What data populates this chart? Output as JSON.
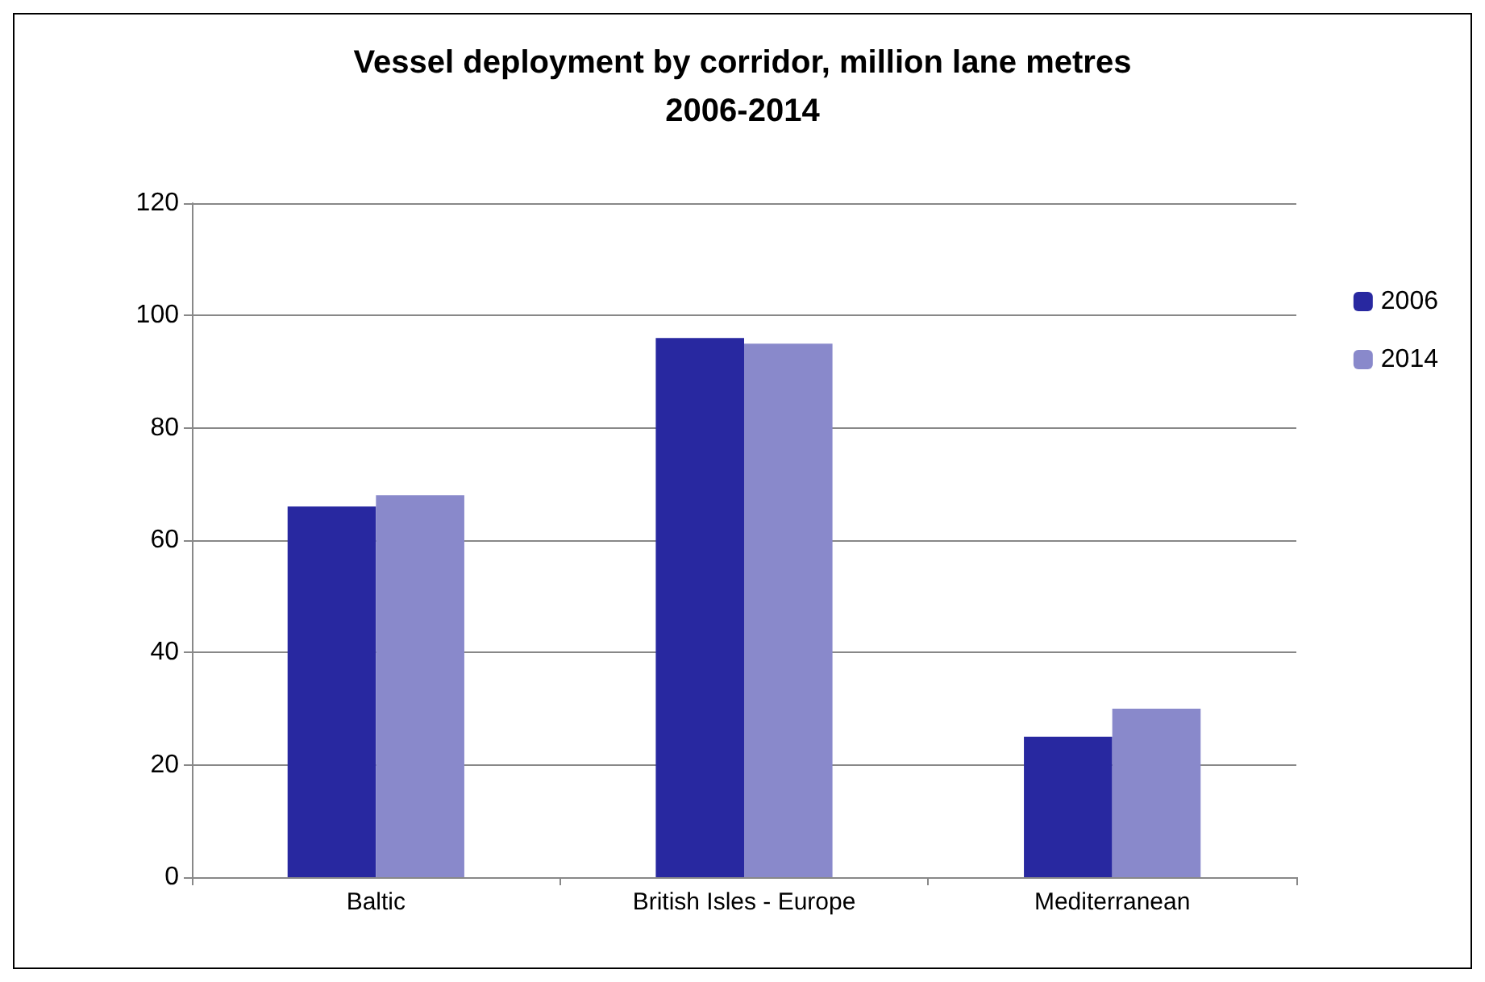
{
  "chart_data": {
    "type": "bar",
    "title": "Vessel deployment by corridor, million lane metres\n2006-2014",
    "categories": [
      "Baltic",
      "British Isles - Europe",
      "Mediterranean"
    ],
    "series": [
      {
        "name": "2006",
        "color": "#2828a0",
        "values": [
          66,
          96,
          25
        ]
      },
      {
        "name": "2014",
        "color": "#8989cb",
        "values": [
          68,
          95,
          30
        ]
      }
    ],
    "ylim": [
      0,
      120
    ],
    "yticks": [
      0,
      20,
      40,
      60,
      80,
      100,
      120
    ],
    "grid": "y",
    "legend": "right"
  }
}
